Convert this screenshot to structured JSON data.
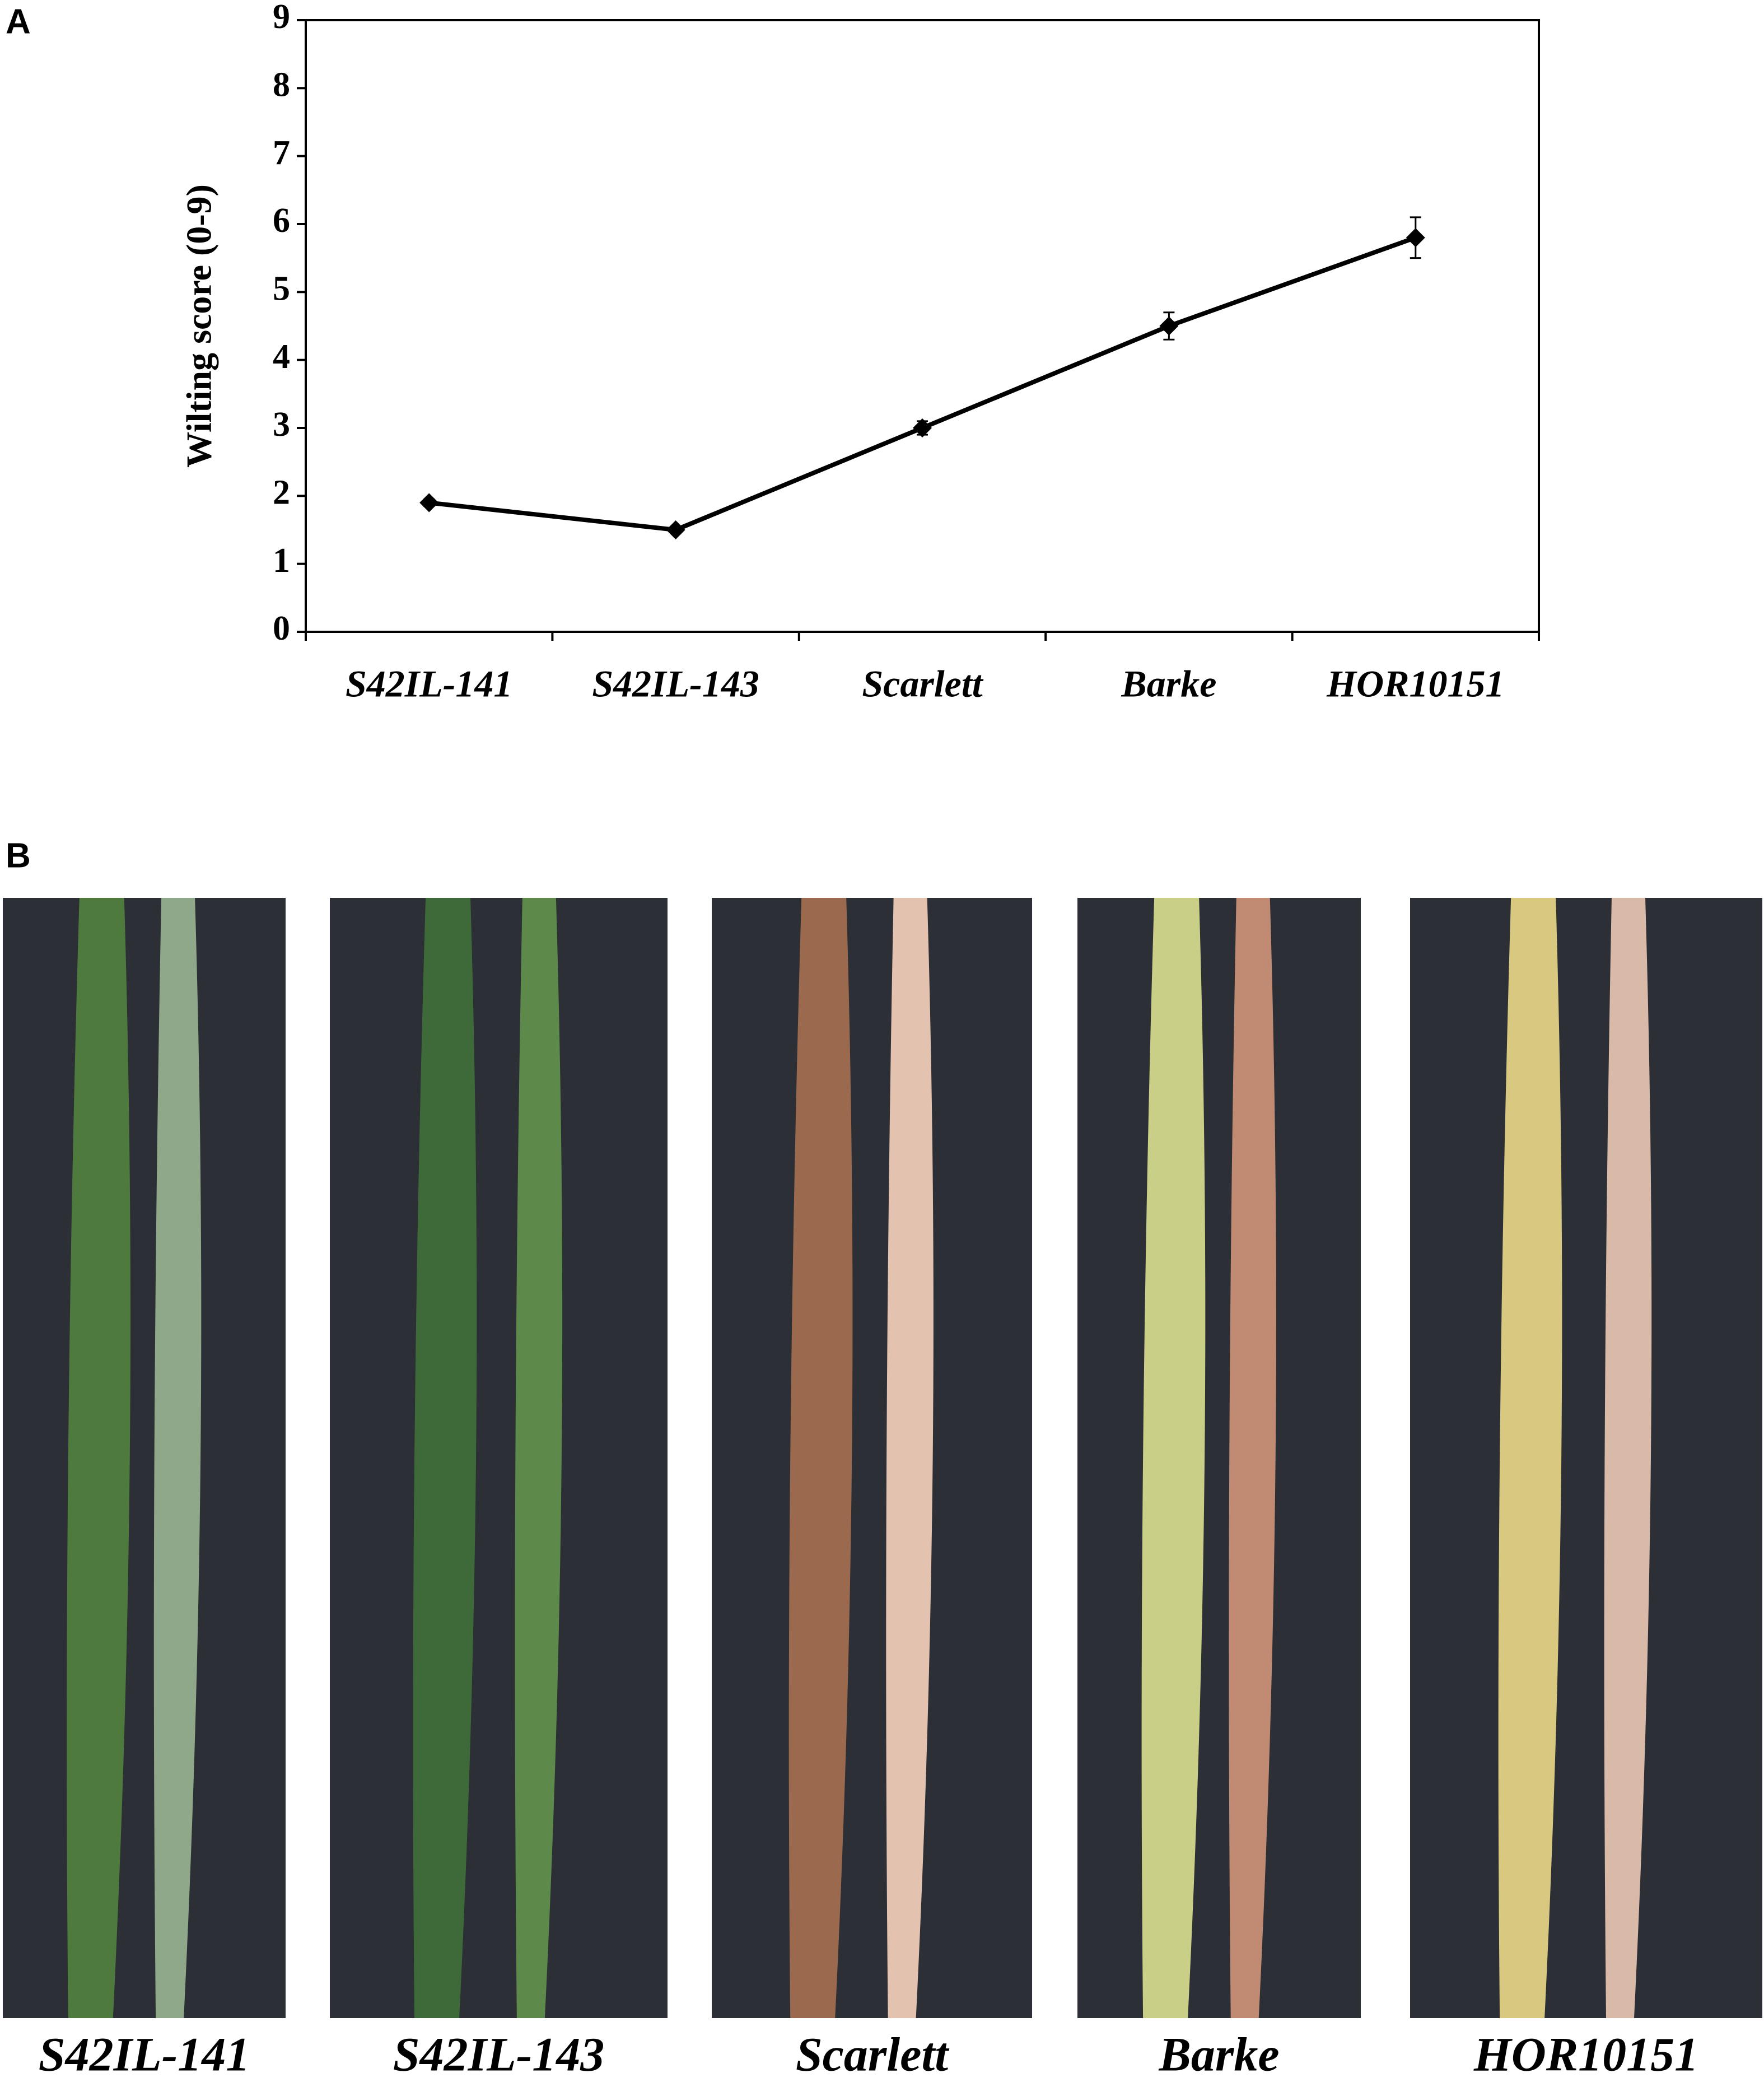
{
  "panel_labels": [
    "A",
    "B"
  ],
  "chart_data": {
    "type": "line",
    "ylabel": "Wilting score (0-9)",
    "categories": [
      "S42IL-141",
      "S42IL-143",
      "Scarlett",
      "Barke",
      "HOR10151"
    ],
    "values": [
      1.9,
      1.5,
      3.0,
      4.5,
      5.8
    ],
    "errors": [
      0.05,
      0.05,
      0.1,
      0.2,
      0.3
    ],
    "color": "#000000",
    "ylim": [
      0,
      9
    ],
    "yticks": [
      0,
      1,
      2,
      3,
      4,
      5,
      6,
      7,
      8,
      9
    ],
    "grid": false
  },
  "photos": [
    {
      "label": "S42IL-141"
    },
    {
      "label": "S42IL-143"
    },
    {
      "label": "Scarlett"
    },
    {
      "label": "Barke"
    },
    {
      "label": "HOR10151"
    }
  ]
}
